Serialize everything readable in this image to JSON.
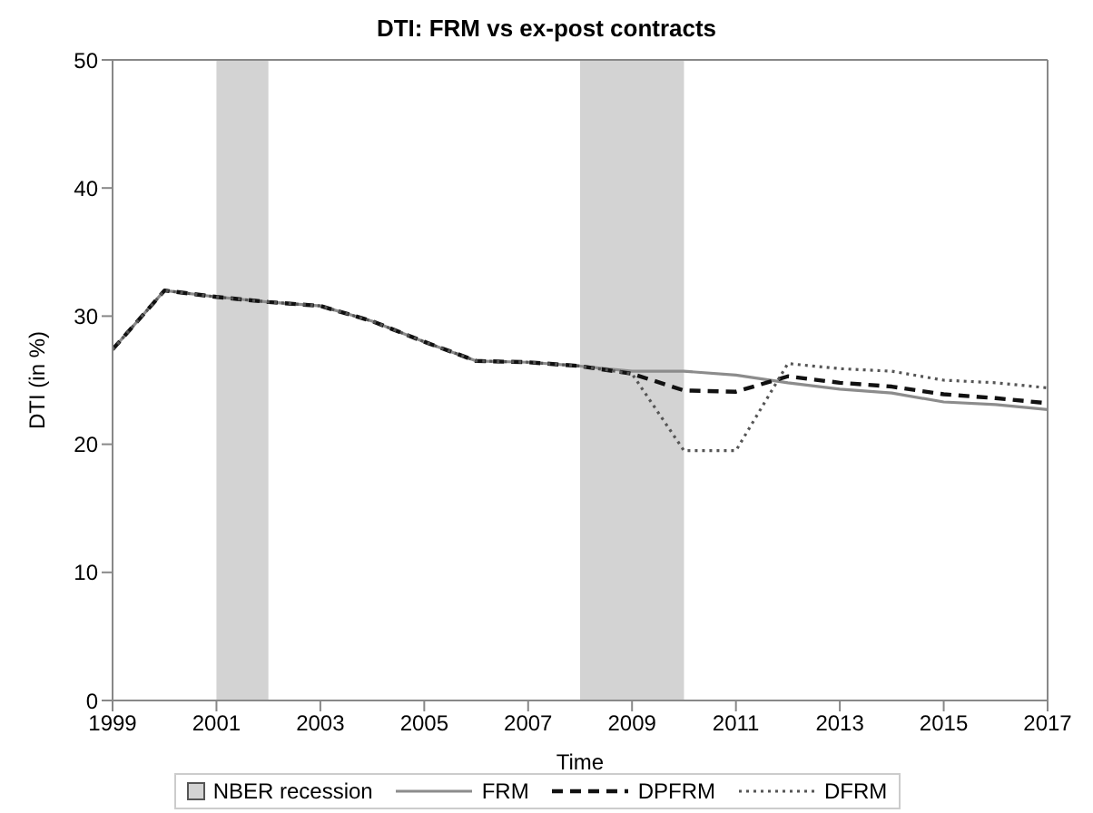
{
  "chart_data": {
    "type": "line",
    "title": "DTI: FRM vs ex-post contracts",
    "xlabel": "Time",
    "ylabel": "DTI (in %)",
    "x": [
      1999,
      2000,
      2001,
      2002,
      2003,
      2004,
      2005,
      2006,
      2007,
      2008,
      2009,
      2010,
      2011,
      2012,
      2013,
      2014,
      2015,
      2016,
      2017
    ],
    "series": [
      {
        "name": "FRM",
        "color": "#8c8c8c",
        "line_style": "solid",
        "values": [
          27.4,
          32.0,
          31.5,
          31.1,
          30.8,
          29.6,
          28.0,
          26.5,
          26.4,
          26.1,
          25.7,
          25.7,
          25.4,
          24.8,
          24.3,
          24.0,
          23.3,
          23.1,
          22.7
        ]
      },
      {
        "name": "DPFRM",
        "color": "#111111",
        "line_style": "dashed",
        "values": [
          27.4,
          32.0,
          31.5,
          31.1,
          30.8,
          29.6,
          28.0,
          26.5,
          26.4,
          26.1,
          25.5,
          24.2,
          24.1,
          25.3,
          24.8,
          24.5,
          23.9,
          23.6,
          23.2
        ]
      },
      {
        "name": "DFRM",
        "color": "#555555",
        "line_style": "dotted",
        "values": [
          27.4,
          32.0,
          31.5,
          31.1,
          30.8,
          29.6,
          28.0,
          26.5,
          26.4,
          26.1,
          25.5,
          19.5,
          19.5,
          26.3,
          25.9,
          25.7,
          25.0,
          24.8,
          24.4
        ]
      }
    ],
    "bands": [
      {
        "axis": "x",
        "from": 2001,
        "to": 2002,
        "label": "NBER recession",
        "color": "#d3d3d3"
      },
      {
        "axis": "x",
        "from": 2008,
        "to": 2010,
        "color": "#d3d3d3"
      }
    ],
    "xlim": [
      1999,
      2017
    ],
    "xticks": [
      1999,
      2001,
      2003,
      2005,
      2007,
      2009,
      2011,
      2013,
      2015,
      2017
    ],
    "ylim": [
      0,
      50
    ],
    "yticks": [
      0,
      10,
      20,
      30,
      40,
      50
    ],
    "grid": false,
    "legend": "bottom",
    "marker": "none"
  }
}
